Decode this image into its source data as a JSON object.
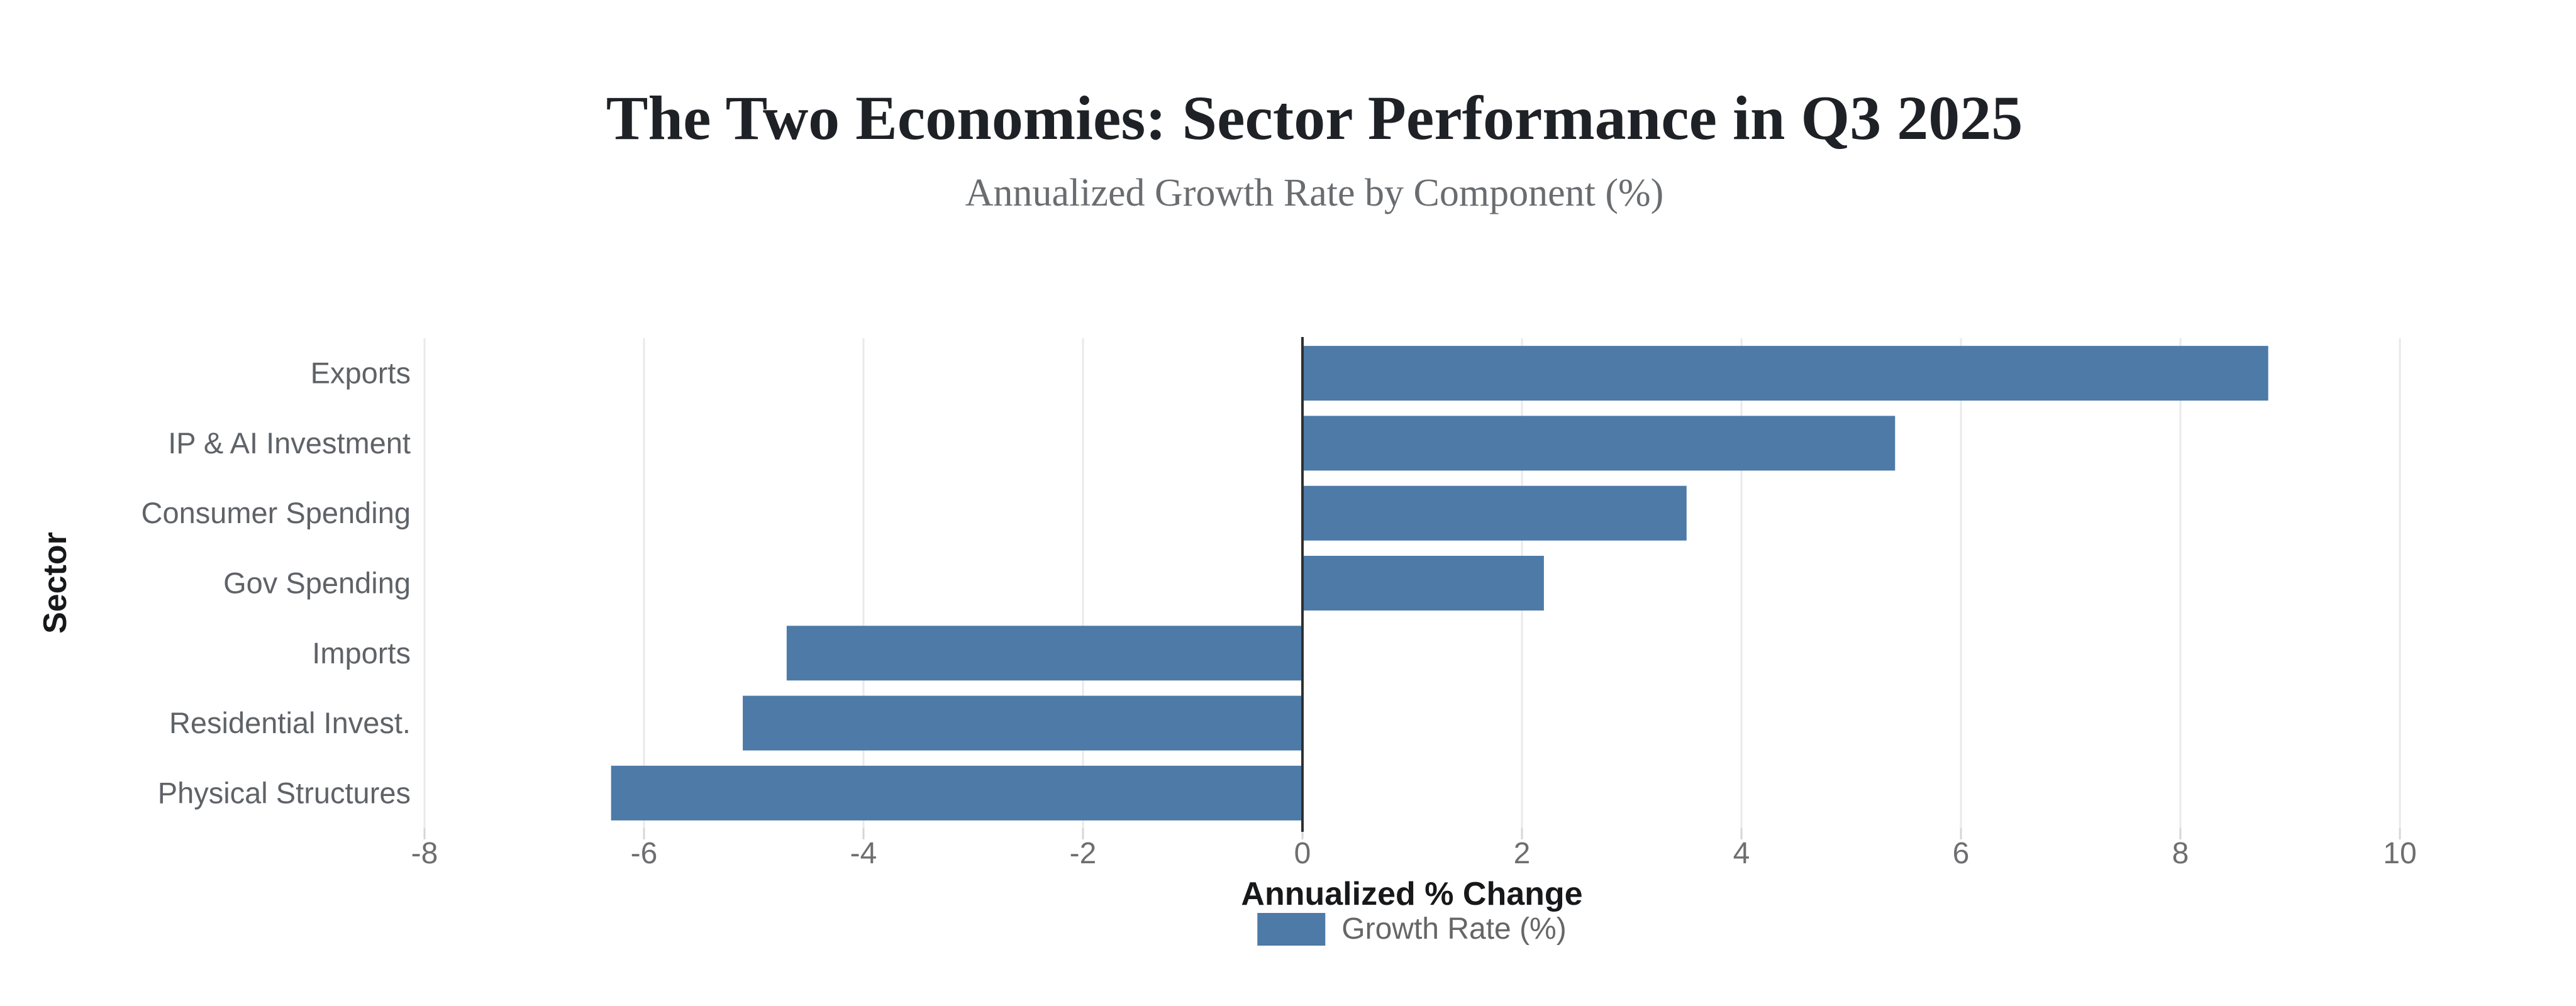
{
  "page": {
    "background": "#ffffff"
  },
  "chart_data": {
    "type": "bar",
    "orientation": "horizontal",
    "title": "The Two Economies: Sector Performance in Q3 2025",
    "subtitle": "Annualized Growth Rate by Component (%)",
    "categories": [
      "Exports",
      "IP & AI Investment",
      "Consumer Spending",
      "Gov Spending",
      "Imports",
      "Residential Invest.",
      "Physical Structures"
    ],
    "values": [
      8.8,
      5.4,
      3.5,
      2.2,
      -4.7,
      -5.1,
      -6.3
    ],
    "series": [
      {
        "name": "Growth Rate (%)",
        "values": [
          8.8,
          5.4,
          3.5,
          2.2,
          -4.7,
          -5.1,
          -6.3
        ]
      }
    ],
    "xlabel": "Annualized % Change",
    "ylabel": "Sector",
    "xlim": [
      -8,
      10
    ],
    "xticks": [
      -8,
      -6,
      -4,
      -2,
      0,
      2,
      4,
      6,
      8,
      10
    ],
    "grid": true,
    "zero_line": true,
    "legend": {
      "label": "Growth Rate (%)",
      "position": "bottom"
    },
    "colors": {
      "bar": "#4d7aa7",
      "grid": "#e9e9ee",
      "tick": "#d5d5db",
      "zero_line": "#2d2f31",
      "tick_text": "#6e6e70",
      "category_text": "#5f6368",
      "title_text": "#1e2126",
      "subtitle_text": "#6a6d70",
      "axis_label_text": "#17181a",
      "legend_text": "#666666"
    }
  }
}
